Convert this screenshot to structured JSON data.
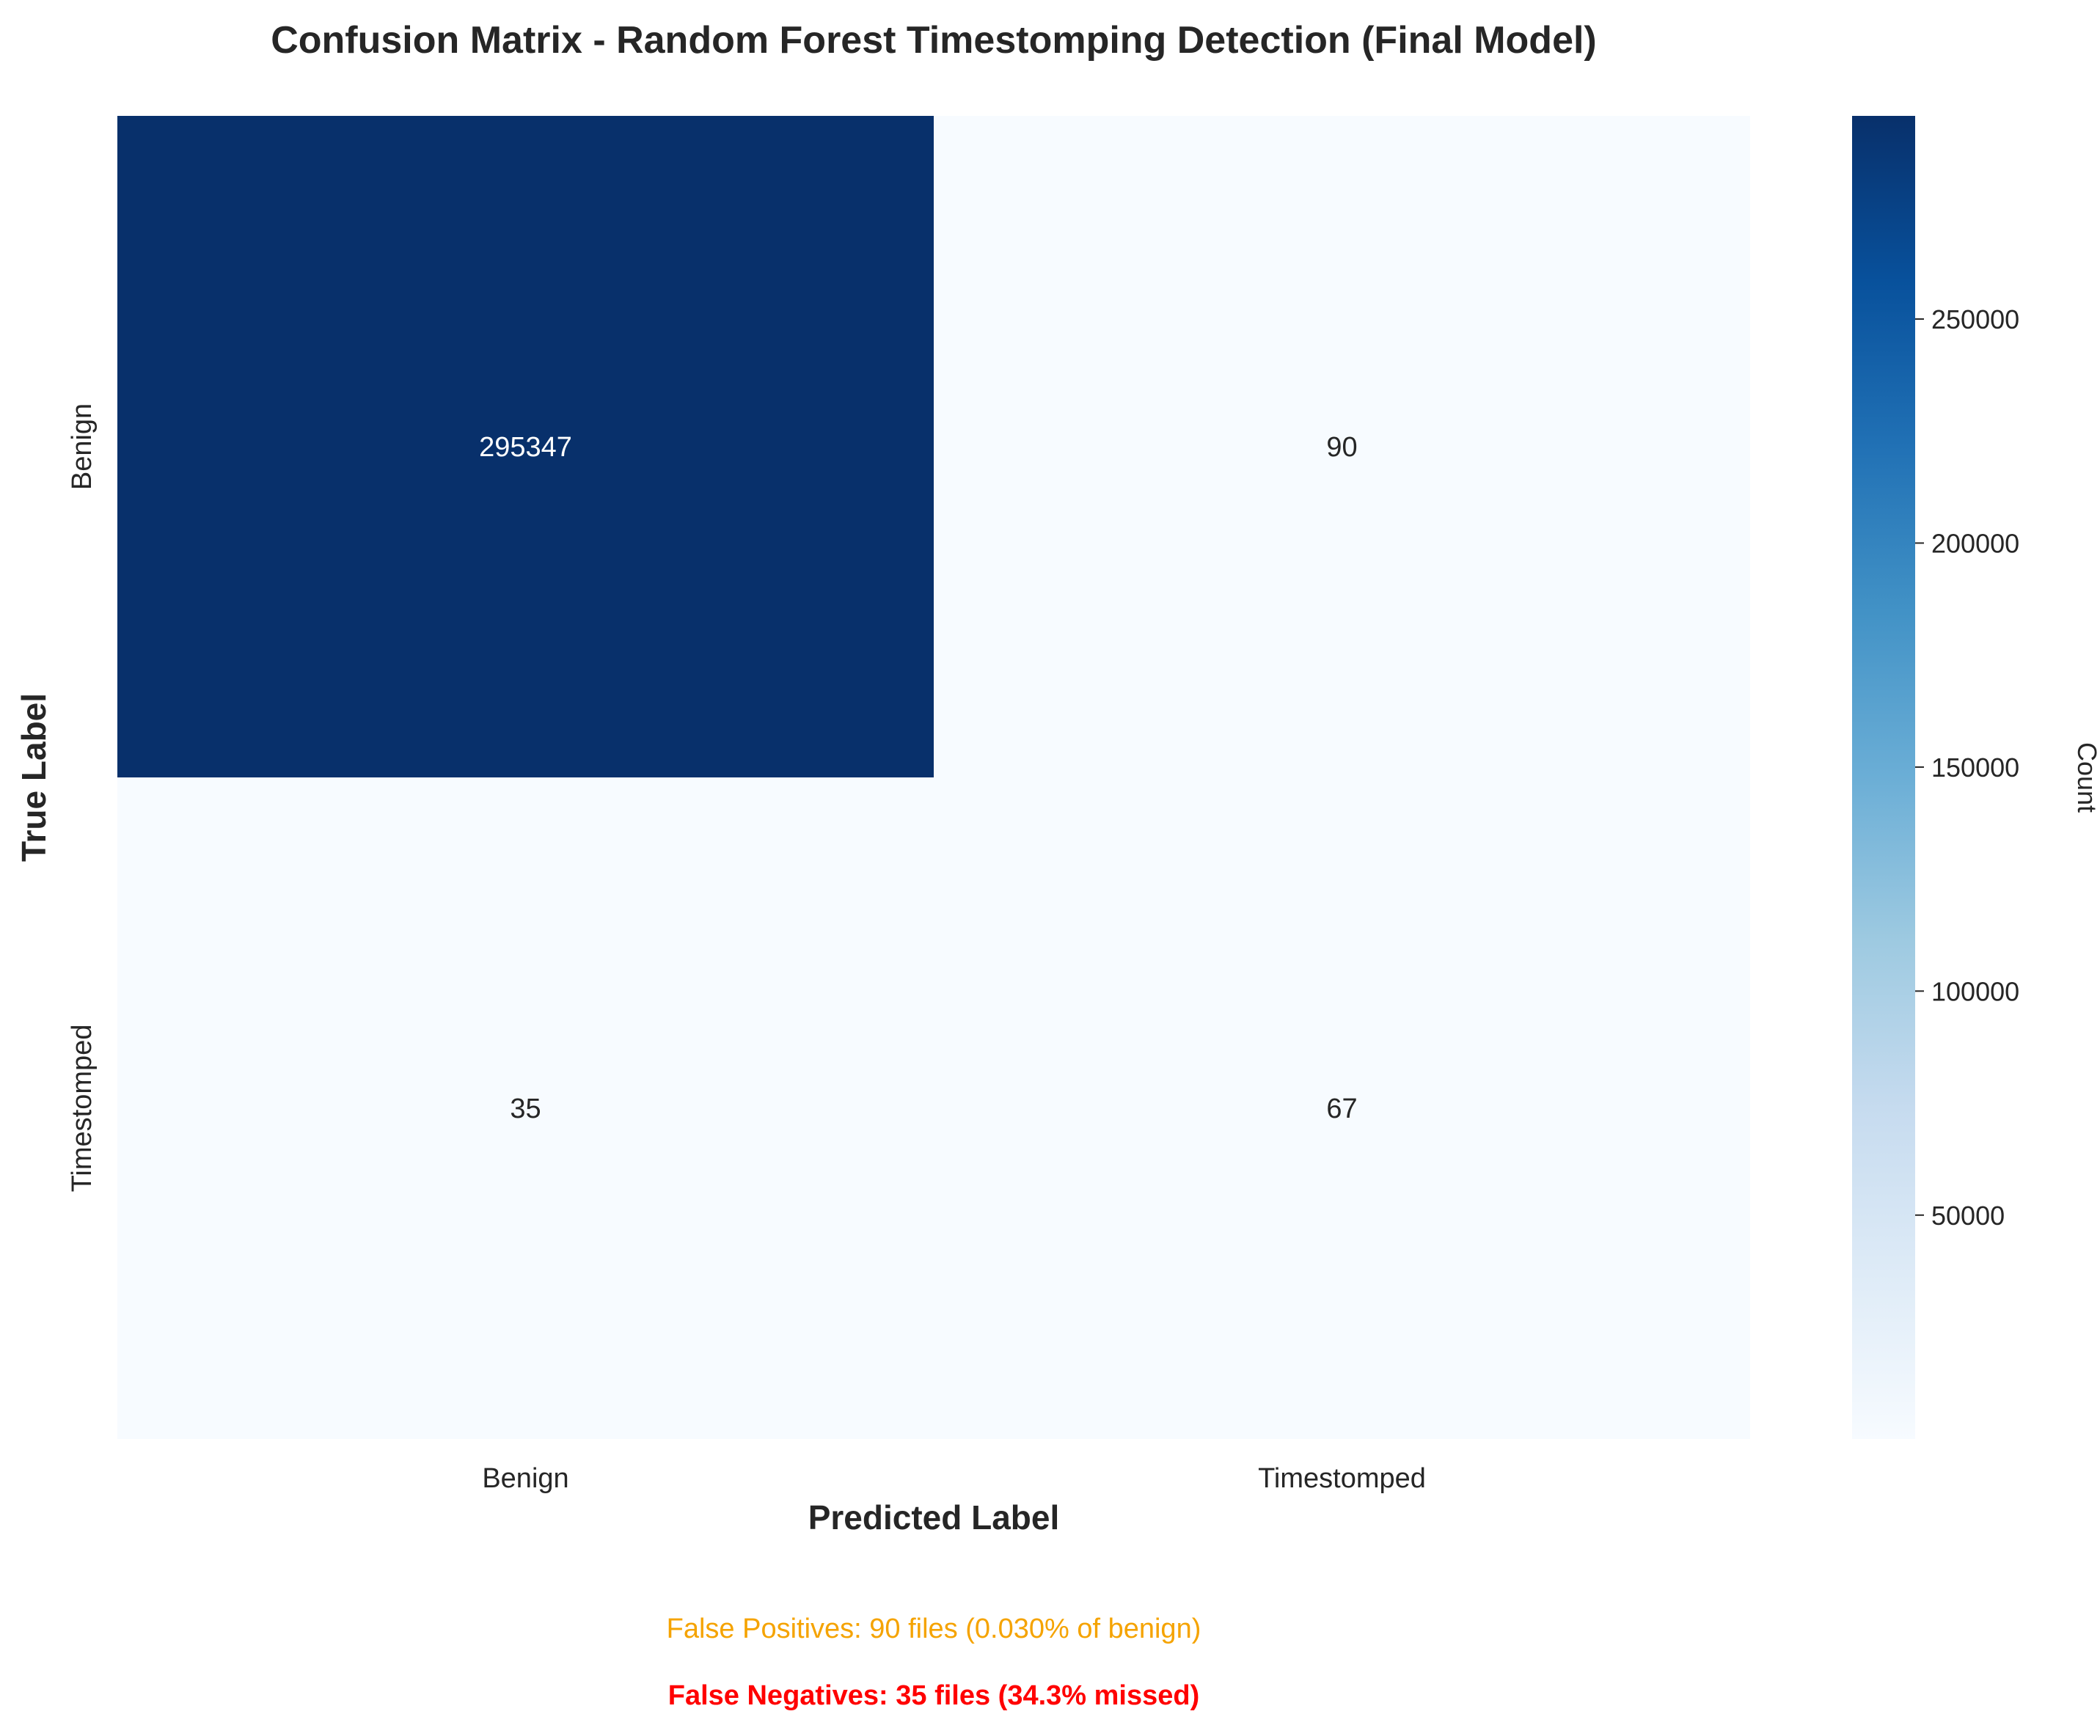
{
  "chart_data": {
    "type": "heatmap",
    "title": "Confusion Matrix - Random Forest Timestomping Detection (Final Model)",
    "xlabel": "Predicted Label",
    "ylabel": "True Label",
    "x_categories": [
      "Benign",
      "Timestomped"
    ],
    "y_categories": [
      "Benign",
      "Timestomped"
    ],
    "values": [
      [
        295347,
        90
      ],
      [
        35,
        67
      ]
    ],
    "colormap": "Blues",
    "colorbar": {
      "label": "Count",
      "min": 35,
      "max": 295347,
      "ticks": [
        50000,
        100000,
        150000,
        200000,
        250000
      ],
      "tick_labels": [
        "50000",
        "100000",
        "150000",
        "200000",
        "250000"
      ]
    },
    "grid": false
  },
  "annotations": {
    "false_positives": "False Positives: 90 files (0.030% of benign)",
    "false_negatives": "False Negatives: 35 files (34.3% missed)"
  },
  "colors": {
    "false_positive_text": "#f5a300",
    "false_negative_text": "#ff0000",
    "low_cell": "#f7fbff",
    "high_cell": "#08306b"
  }
}
